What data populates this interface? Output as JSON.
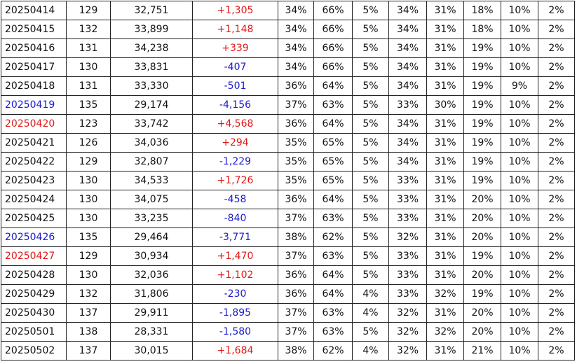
{
  "table": {
    "rows": [
      [
        "20250414",
        "129",
        "32,751",
        "+1,305",
        "34%",
        "66%",
        "5%",
        "34%",
        "31%",
        "18%",
        "10%",
        "2%"
      ],
      [
        "20250415",
        "132",
        "33,899",
        "+1,148",
        "34%",
        "66%",
        "5%",
        "34%",
        "31%",
        "18%",
        "10%",
        "2%"
      ],
      [
        "20250416",
        "131",
        "34,238",
        "+339",
        "34%",
        "66%",
        "5%",
        "34%",
        "31%",
        "19%",
        "10%",
        "2%"
      ],
      [
        "20250417",
        "130",
        "33,831",
        "-407",
        "34%",
        "66%",
        "5%",
        "34%",
        "31%",
        "19%",
        "10%",
        "2%"
      ],
      [
        "20250418",
        "131",
        "33,330",
        "-501",
        "36%",
        "64%",
        "5%",
        "34%",
        "31%",
        "19%",
        "9%",
        "2%"
      ],
      [
        "20250419",
        "135",
        "29,174",
        "-4,156",
        "37%",
        "63%",
        "5%",
        "33%",
        "30%",
        "19%",
        "10%",
        "2%"
      ],
      [
        "20250420",
        "123",
        "33,742",
        "+4,568",
        "36%",
        "64%",
        "5%",
        "34%",
        "31%",
        "19%",
        "10%",
        "2%"
      ],
      [
        "20250421",
        "126",
        "34,036",
        "+294",
        "35%",
        "65%",
        "5%",
        "34%",
        "31%",
        "19%",
        "10%",
        "2%"
      ],
      [
        "20250422",
        "129",
        "32,807",
        "-1,229",
        "35%",
        "65%",
        "5%",
        "34%",
        "31%",
        "19%",
        "10%",
        "2%"
      ],
      [
        "20250423",
        "130",
        "34,533",
        "+1,726",
        "35%",
        "65%",
        "5%",
        "33%",
        "31%",
        "19%",
        "10%",
        "2%"
      ],
      [
        "20250424",
        "130",
        "34,075",
        "-458",
        "36%",
        "64%",
        "5%",
        "33%",
        "31%",
        "20%",
        "10%",
        "2%"
      ],
      [
        "20250425",
        "130",
        "33,235",
        "-840",
        "37%",
        "63%",
        "5%",
        "33%",
        "31%",
        "20%",
        "10%",
        "2%"
      ],
      [
        "20250426",
        "135",
        "29,464",
        "-3,771",
        "38%",
        "62%",
        "5%",
        "32%",
        "31%",
        "20%",
        "10%",
        "2%"
      ],
      [
        "20250427",
        "129",
        "30,934",
        "+1,470",
        "37%",
        "63%",
        "5%",
        "33%",
        "31%",
        "19%",
        "10%",
        "2%"
      ],
      [
        "20250428",
        "130",
        "32,036",
        "+1,102",
        "36%",
        "64%",
        "5%",
        "33%",
        "31%",
        "20%",
        "10%",
        "2%"
      ],
      [
        "20250429",
        "132",
        "31,806",
        "-230",
        "36%",
        "64%",
        "4%",
        "33%",
        "32%",
        "19%",
        "10%",
        "2%"
      ],
      [
        "20250430",
        "137",
        "29,911",
        "-1,895",
        "37%",
        "63%",
        "4%",
        "32%",
        "31%",
        "20%",
        "10%",
        "2%"
      ],
      [
        "20250501",
        "138",
        "28,331",
        "-1,580",
        "37%",
        "63%",
        "5%",
        "32%",
        "32%",
        "20%",
        "10%",
        "2%"
      ],
      [
        "20250502",
        "137",
        "30,015",
        "+1,684",
        "38%",
        "62%",
        "4%",
        "32%",
        "31%",
        "21%",
        "10%",
        "2%"
      ]
    ]
  }
}
